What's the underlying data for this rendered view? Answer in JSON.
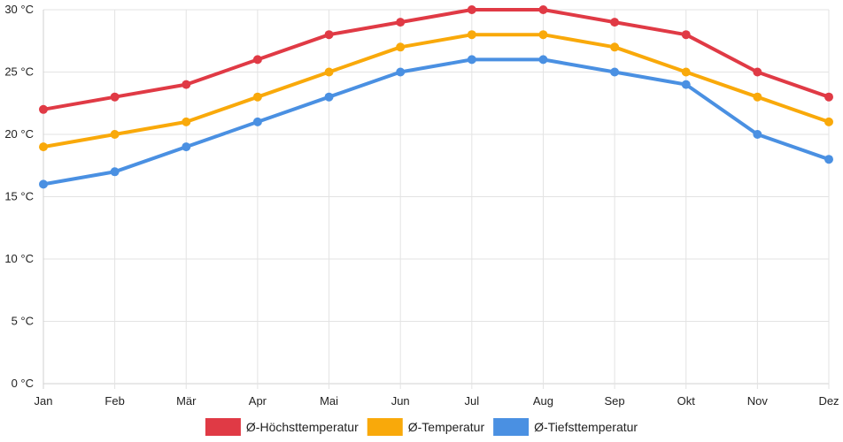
{
  "chart_data": {
    "type": "line",
    "title": "",
    "xlabel": "",
    "ylabel": "",
    "categories": [
      "Jan",
      "Feb",
      "Mär",
      "Apr",
      "Mai",
      "Jun",
      "Jul",
      "Aug",
      "Sep",
      "Okt",
      "Nov",
      "Dez"
    ],
    "ylim": [
      0,
      30
    ],
    "yticks": [
      0,
      5,
      10,
      15,
      20,
      25,
      30
    ],
    "y_unit": "°C",
    "grid": true,
    "legend_position": "bottom-center",
    "series": [
      {
        "name": "Ø-Höchsttemperatur",
        "color": "#e03a45",
        "values": [
          22,
          23,
          24,
          26,
          28,
          29,
          30,
          30,
          29,
          28,
          25,
          23
        ]
      },
      {
        "name": "Ø-Temperatur",
        "color": "#f9a90a",
        "values": [
          19,
          20,
          21,
          23,
          25,
          27,
          28,
          28,
          27,
          25,
          23,
          21
        ]
      },
      {
        "name": "Ø-Tiefsttemperatur",
        "color": "#4a90e2",
        "values": [
          16,
          17,
          19,
          21,
          23,
          25,
          26,
          26,
          25,
          24,
          20,
          18
        ]
      }
    ]
  }
}
